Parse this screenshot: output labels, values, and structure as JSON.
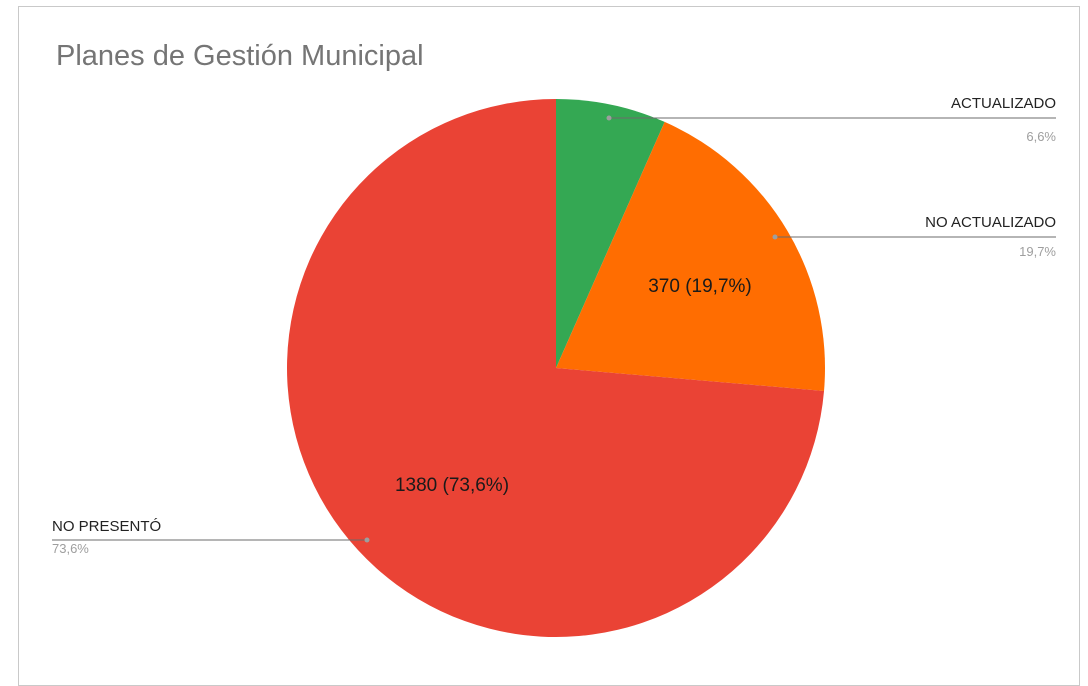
{
  "chart_data": {
    "type": "pie",
    "title": "Planes de Gestión Municipal",
    "slices": [
      {
        "label": "ACTUALIZADO",
        "value": 124,
        "percent": 6.6,
        "percent_text": "6,6%",
        "slice_text": "",
        "color": "#34a853"
      },
      {
        "label": "NO ACTUALIZADO",
        "value": 370,
        "percent": 19.7,
        "percent_text": "19,7%",
        "slice_text": "370 (19,7%)",
        "color": "#ff6d01"
      },
      {
        "label": "NO PRESENTÓ",
        "value": 1380,
        "percent": 73.6,
        "percent_text": "73,6%",
        "slice_text": "1380 (73,6%)",
        "color": "#ea4335"
      }
    ],
    "legend_placement": "callouts",
    "start_angle": "12 o'clock",
    "direction": "clockwise"
  }
}
